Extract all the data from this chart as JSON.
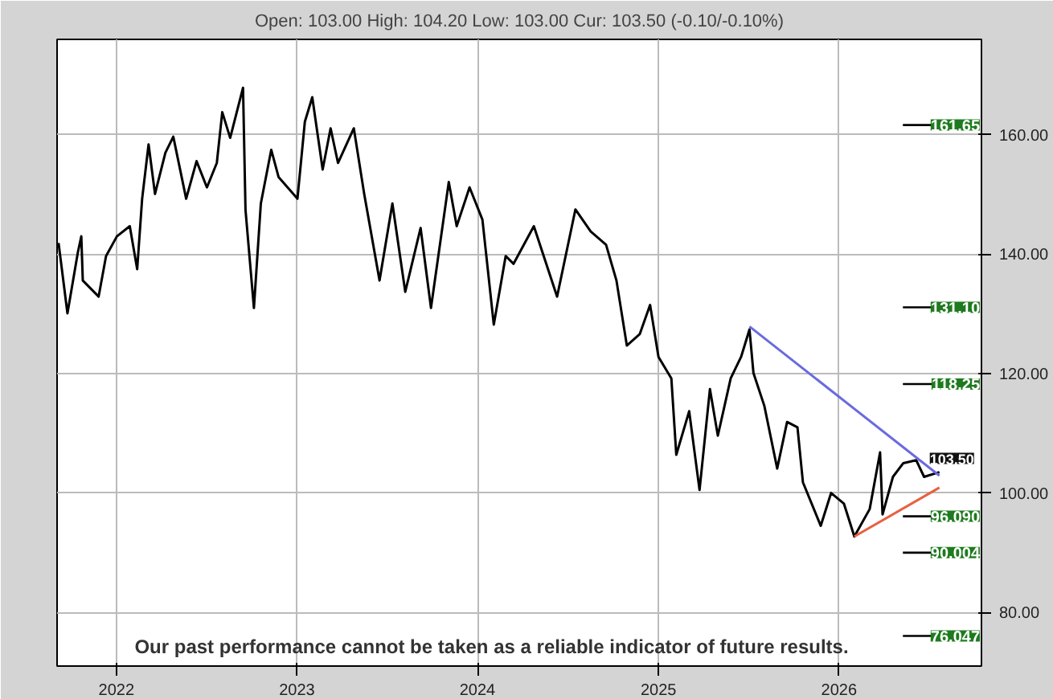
{
  "chart_data": {
    "type": "line",
    "subtitle": "Open: 103.00 High: 104.20 Low: 103.00 Cur: 103.50 (-0.10/-0.10%)",
    "x": [
      "2021-09-06",
      "2021-09-24",
      "2021-10-15",
      "2021-10-22",
      "2021-10-25",
      "2021-11-26",
      "2021-12-11",
      "2022-01-02",
      "2022-01-28",
      "2022-02-12",
      "2022-02-22",
      "2022-03-07",
      "2022-03-20",
      "2022-04-10",
      "2022-04-26",
      "2022-05-22",
      "2022-06-12",
      "2022-07-03",
      "2022-07-23",
      "2022-08-03",
      "2022-08-19",
      "2022-09-14",
      "2022-09-19",
      "2022-10-06",
      "2022-10-20",
      "2022-11-10",
      "2022-11-25",
      "2023-01-02",
      "2023-01-17",
      "2023-02-01",
      "2023-02-22",
      "2023-03-10",
      "2023-03-25",
      "2023-04-26",
      "2023-05-17",
      "2023-06-17",
      "2023-07-13",
      "2023-08-08",
      "2023-09-08",
      "2023-09-29",
      "2023-11-04",
      "2023-11-20",
      "2023-12-16",
      "2024-01-11",
      "2024-02-03",
      "2024-02-27",
      "2024-03-14",
      "2024-04-24",
      "2024-06-10",
      "2024-07-17",
      "2024-08-17",
      "2024-09-17",
      "2024-10-08",
      "2024-10-29",
      "2024-11-24",
      "2024-12-15",
      "2025-01-01",
      "2025-01-27",
      "2025-02-06",
      "2025-03-04",
      "2025-03-25",
      "2025-04-15",
      "2025-05-01",
      "2025-05-27",
      "2025-06-17",
      "2025-07-04",
      "2025-07-12",
      "2025-08-03",
      "2025-08-29",
      "2025-09-18",
      "2025-10-09",
      "2025-10-20",
      "2025-11-25",
      "2025-12-16",
      "2026-01-11",
      "2026-02-01",
      "2026-03-04",
      "2026-03-25",
      "2026-03-30",
      "2026-04-20",
      "2026-05-11",
      "2026-06-06",
      "2026-06-22",
      "2026-07-23"
    ],
    "series": [
      {
        "color": "#000000",
        "values": [
          141.9,
          130.1,
          140.3,
          143,
          135.6,
          132.9,
          139.7,
          143,
          144.7,
          137.5,
          149.3,
          158.4,
          150.1,
          157,
          159.7,
          149.3,
          155.6,
          151.2,
          155.3,
          163.8,
          159.5,
          167.9,
          147.4,
          131,
          148.5,
          157.5,
          152.9,
          149.3,
          162.2,
          166.3,
          154.2,
          161.1,
          155.3,
          161.1,
          150.1,
          135.6,
          148.5,
          133.7,
          144.4,
          131,
          152.1,
          144.7,
          151.2,
          145.8,
          128.2,
          139.7,
          138.4,
          144.7,
          132.9,
          147.5,
          143.8,
          141.6,
          135.6,
          124.7,
          126.6,
          131.5,
          122.8,
          119.2,
          106.4,
          113.7,
          100.5,
          117.4,
          109.6,
          119.2,
          122.8,
          127.4,
          120.1,
          114.6,
          104.1,
          111.9,
          111,
          101.8,
          94.5,
          100,
          98.2,
          92.7,
          97.3,
          106.8,
          96.4,
          102.7,
          105,
          105.5,
          102.7,
          103.5
        ]
      },
      {
        "type": "line",
        "color": "#6a6ae0",
        "x": [
          "2025-07-04",
          "2026-07-23"
        ],
        "values": [
          127.9,
          102.9
        ]
      },
      {
        "type": "line",
        "color": "#e86040",
        "x": [
          "2026-02-01",
          "2026-07-23"
        ],
        "values": [
          92.7,
          100.9
        ]
      }
    ],
    "xlim": [
      "2021-09-03",
      "2026-10-16"
    ],
    "xticks": [
      "2022",
      "2023",
      "2024",
      "2025",
      "2026"
    ],
    "ylim": [
      71,
      176
    ],
    "yticks": [
      {
        "value": 80,
        "label": "80.00"
      },
      {
        "value": 100,
        "label": "100.00"
      },
      {
        "value": 120,
        "label": "120.00"
      },
      {
        "value": 140,
        "label": "140.00"
      },
      {
        "value": 160,
        "label": "160.00"
      }
    ],
    "grid": true,
    "line_style": "solid",
    "ref_lines": [
      {
        "axis": "y",
        "value": 161.65,
        "label": "161.65",
        "color": "#000000"
      },
      {
        "axis": "y",
        "value": 131.1,
        "label": "131.10",
        "color": "#000000"
      },
      {
        "axis": "y",
        "value": 118.25,
        "label": "118.25",
        "color": "#000000"
      },
      {
        "axis": "y",
        "value": 96.09,
        "label": "96.090",
        "color": "#000000"
      },
      {
        "axis": "y",
        "value": 90.004,
        "label": "90.004",
        "color": "#000000"
      },
      {
        "axis": "y",
        "value": 76.047,
        "label": "76.047",
        "color": "#000000"
      }
    ],
    "annotations": [
      {
        "text": "103.50",
        "x": "2026-07-23",
        "y": 103.5
      },
      "Our past performance cannot be taken as a reliable indicator of future results."
    ]
  }
}
